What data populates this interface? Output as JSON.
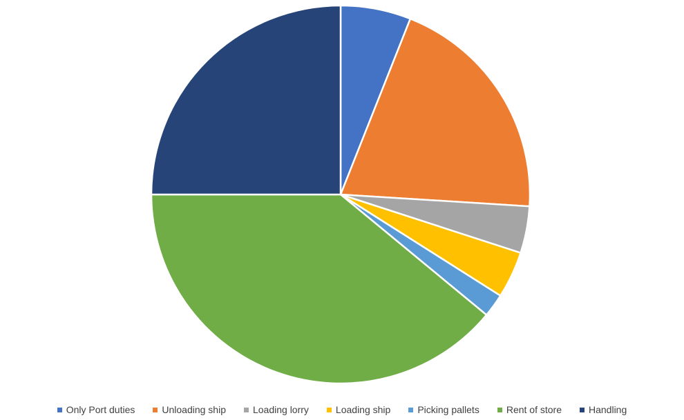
{
  "chart_data": {
    "type": "pie",
    "title": "",
    "categories": [
      "Only Port duties",
      "Unloading ship",
      "Loading lorry",
      "Loading ship",
      "Picking pallets",
      "Rent of store",
      "Handling"
    ],
    "values": [
      6,
      20,
      4,
      4,
      2,
      39,
      25
    ],
    "colors": [
      "#4472C4",
      "#ED7D31",
      "#A5A5A5",
      "#FFC000",
      "#5B9BD5",
      "#70AD47",
      "#264478"
    ],
    "start_angle_deg": 0,
    "direction": "clockwise",
    "legend_position": "bottom"
  }
}
